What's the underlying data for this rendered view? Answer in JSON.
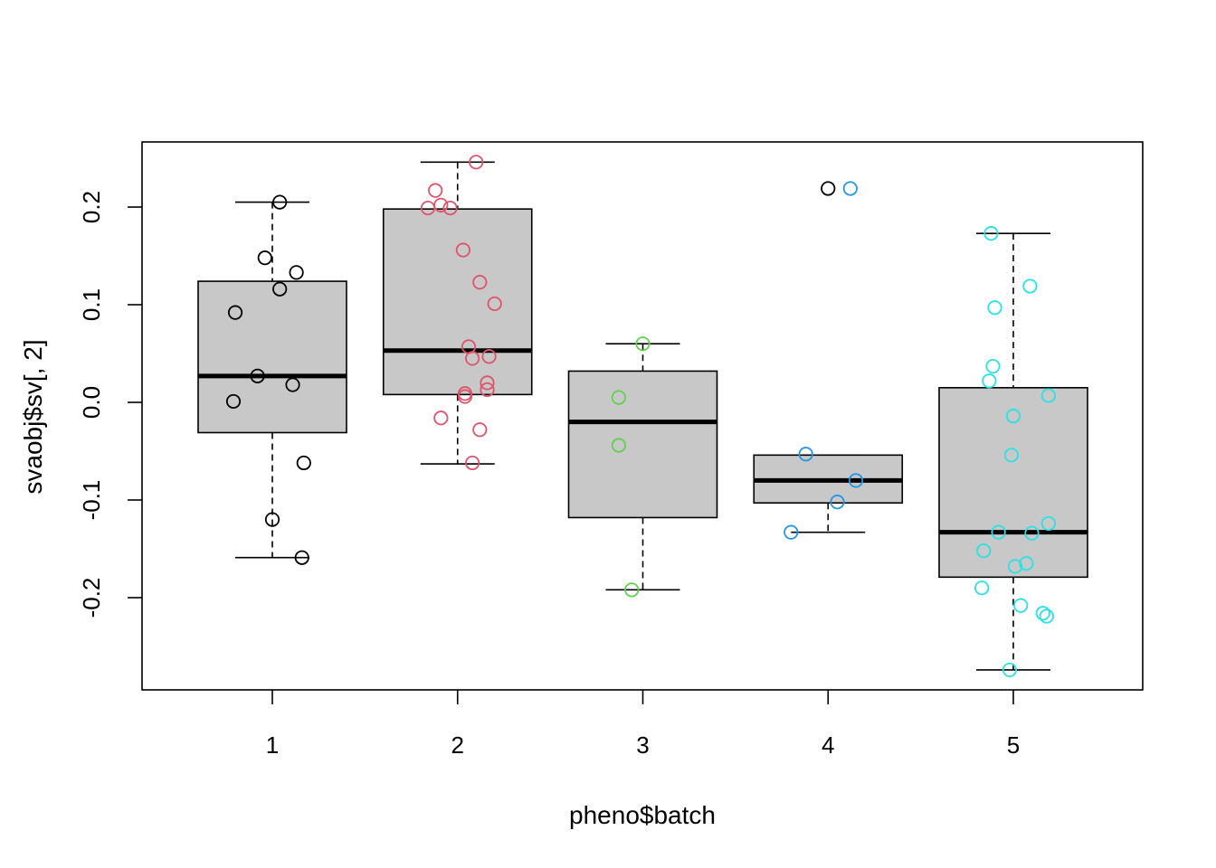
{
  "chart_data": {
    "type": "boxplot",
    "xlabel": "pheno$batch",
    "ylabel": "svaobj$sv[, 2]",
    "categories": [
      "1",
      "2",
      "3",
      "4",
      "5"
    ],
    "yticks": [
      -0.2,
      -0.1,
      0.0,
      0.1,
      0.2
    ],
    "ytick_labels": [
      "-0.2",
      "-0.1",
      "0.0",
      "0.1",
      "0.2"
    ],
    "ylim": [
      -0.29,
      0.27
    ],
    "grid": false,
    "legend": "none",
    "box_fill": "#c8c8c8",
    "boxes": [
      {
        "category": "1",
        "whisker_low": -0.159,
        "q1": -0.031,
        "median": 0.027,
        "q3": 0.124,
        "whisker_high": 0.205
      },
      {
        "category": "2",
        "whisker_low": -0.063,
        "q1": 0.008,
        "median": 0.053,
        "q3": 0.198,
        "whisker_high": 0.246
      },
      {
        "category": "3",
        "whisker_low": -0.192,
        "q1": -0.118,
        "median": -0.02,
        "q3": 0.032,
        "whisker_high": 0.06
      },
      {
        "category": "4",
        "whisker_low": -0.133,
        "q1": -0.103,
        "median": -0.08,
        "q3": -0.054,
        "whisker_high": -0.054
      },
      {
        "category": "5",
        "whisker_low": -0.274,
        "q1": -0.179,
        "median": -0.133,
        "q3": 0.015,
        "whisker_high": 0.173
      }
    ],
    "points": [
      {
        "x": 0.8,
        "y": 0.092,
        "color": "#000000"
      },
      {
        "x": 0.79,
        "y": 0.001,
        "color": "#000000"
      },
      {
        "x": 0.92,
        "y": 0.027,
        "color": "#000000"
      },
      {
        "x": 0.96,
        "y": 0.148,
        "color": "#000000"
      },
      {
        "x": 1.0,
        "y": -0.12,
        "color": "#000000"
      },
      {
        "x": 1.04,
        "y": 0.116,
        "color": "#000000"
      },
      {
        "x": 1.04,
        "y": 0.205,
        "color": "#000000"
      },
      {
        "x": 1.11,
        "y": 0.018,
        "color": "#000000"
      },
      {
        "x": 1.13,
        "y": 0.133,
        "color": "#000000"
      },
      {
        "x": 1.17,
        "y": -0.062,
        "color": "#000000"
      },
      {
        "x": 1.16,
        "y": -0.159,
        "color": "#000000"
      },
      {
        "x": 1.84,
        "y": 0.199,
        "color": "#df536b"
      },
      {
        "x": 1.88,
        "y": 0.217,
        "color": "#df536b"
      },
      {
        "x": 1.91,
        "y": 0.202,
        "color": "#df536b"
      },
      {
        "x": 1.96,
        "y": 0.199,
        "color": "#df536b"
      },
      {
        "x": 2.1,
        "y": 0.246,
        "color": "#df536b"
      },
      {
        "x": 2.03,
        "y": 0.156,
        "color": "#df536b"
      },
      {
        "x": 2.12,
        "y": 0.123,
        "color": "#df536b"
      },
      {
        "x": 2.2,
        "y": 0.101,
        "color": "#df536b"
      },
      {
        "x": 2.06,
        "y": 0.057,
        "color": "#df536b"
      },
      {
        "x": 2.08,
        "y": 0.045,
        "color": "#df536b"
      },
      {
        "x": 2.17,
        "y": 0.047,
        "color": "#df536b"
      },
      {
        "x": 2.16,
        "y": 0.02,
        "color": "#df536b"
      },
      {
        "x": 2.16,
        "y": 0.013,
        "color": "#df536b"
      },
      {
        "x": 2.04,
        "y": 0.009,
        "color": "#df536b"
      },
      {
        "x": 2.04,
        "y": 0.006,
        "color": "#df536b"
      },
      {
        "x": 1.91,
        "y": -0.016,
        "color": "#df536b"
      },
      {
        "x": 2.12,
        "y": -0.028,
        "color": "#df536b"
      },
      {
        "x": 2.08,
        "y": -0.062,
        "color": "#df536b"
      },
      {
        "x": 3.0,
        "y": 0.06,
        "color": "#61d04f"
      },
      {
        "x": 2.87,
        "y": 0.005,
        "color": "#61d04f"
      },
      {
        "x": 2.87,
        "y": -0.044,
        "color": "#61d04f"
      },
      {
        "x": 2.94,
        "y": -0.192,
        "color": "#61d04f"
      },
      {
        "x": 4.0,
        "y": 0.219,
        "color": "#000000"
      },
      {
        "x": 4.12,
        "y": 0.219,
        "color": "#2297e6"
      },
      {
        "x": 3.88,
        "y": -0.053,
        "color": "#2297e6"
      },
      {
        "x": 4.15,
        "y": -0.08,
        "color": "#2297e6"
      },
      {
        "x": 4.05,
        "y": -0.102,
        "color": "#2297e6"
      },
      {
        "x": 3.8,
        "y": -0.133,
        "color": "#2297e6"
      },
      {
        "x": 4.88,
        "y": 0.173,
        "color": "#28e2e5"
      },
      {
        "x": 5.09,
        "y": 0.119,
        "color": "#28e2e5"
      },
      {
        "x": 4.9,
        "y": 0.097,
        "color": "#28e2e5"
      },
      {
        "x": 4.89,
        "y": 0.037,
        "color": "#28e2e5"
      },
      {
        "x": 4.87,
        "y": 0.022,
        "color": "#28e2e5"
      },
      {
        "x": 5.19,
        "y": 0.007,
        "color": "#28e2e5"
      },
      {
        "x": 5.0,
        "y": -0.014,
        "color": "#28e2e5"
      },
      {
        "x": 4.99,
        "y": -0.054,
        "color": "#28e2e5"
      },
      {
        "x": 5.19,
        "y": -0.124,
        "color": "#28e2e5"
      },
      {
        "x": 4.92,
        "y": -0.133,
        "color": "#28e2e5"
      },
      {
        "x": 5.1,
        "y": -0.134,
        "color": "#28e2e5"
      },
      {
        "x": 4.84,
        "y": -0.152,
        "color": "#28e2e5"
      },
      {
        "x": 5.07,
        "y": -0.165,
        "color": "#28e2e5"
      },
      {
        "x": 5.01,
        "y": -0.168,
        "color": "#28e2e5"
      },
      {
        "x": 4.83,
        "y": -0.19,
        "color": "#28e2e5"
      },
      {
        "x": 5.04,
        "y": -0.208,
        "color": "#28e2e5"
      },
      {
        "x": 5.16,
        "y": -0.216,
        "color": "#28e2e5"
      },
      {
        "x": 5.18,
        "y": -0.219,
        "color": "#28e2e5"
      },
      {
        "x": 4.98,
        "y": -0.274,
        "color": "#28e2e5"
      }
    ]
  }
}
